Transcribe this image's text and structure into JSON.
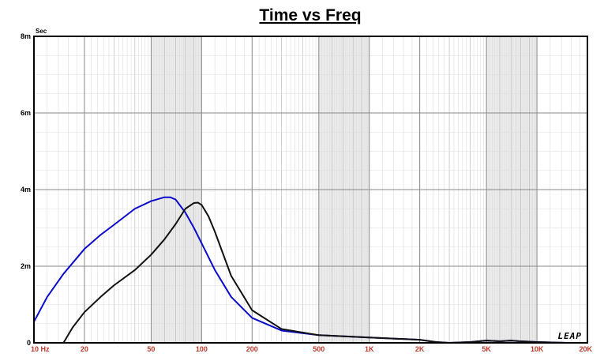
{
  "chart_data": {
    "type": "line",
    "title": "Time vs Freq",
    "y_unit": "Sec",
    "x_scale": "log",
    "xlim": [
      10,
      20000
    ],
    "ylim": [
      0,
      0.008
    ],
    "x_tick_values": [
      10,
      20,
      50,
      100,
      200,
      500,
      1000,
      2000,
      5000,
      10000,
      20000
    ],
    "x_tick_labels": [
      "10  Hz",
      "20",
      "50",
      "100",
      "200",
      "500",
      "1K",
      "2K",
      "5K",
      "10K",
      "20K"
    ],
    "y_tick_values": [
      0,
      0.002,
      0.004,
      0.006,
      0.008
    ],
    "y_tick_labels": [
      "0",
      "2m",
      "4m",
      "6m",
      "8m"
    ],
    "grid": true,
    "shaded_bands": [
      [
        50,
        100
      ],
      [
        500,
        1000
      ],
      [
        5000,
        10000
      ]
    ],
    "logo": "LEAP",
    "series": [
      {
        "color": "#0a0acc",
        "x": [
          10,
          12,
          15,
          20,
          25,
          30,
          40,
          50,
          60,
          65,
          70,
          80,
          90,
          100,
          120,
          150,
          200,
          300,
          500,
          1000,
          2000,
          2500,
          3000,
          4000,
          5000,
          6000,
          7000,
          8000,
          10000,
          15000,
          20000
        ],
        "y": [
          0.00055,
          0.0012,
          0.0018,
          0.00245,
          0.00282,
          0.00308,
          0.0035,
          0.0037,
          0.0038,
          0.0038,
          0.00374,
          0.0034,
          0.003,
          0.0026,
          0.0019,
          0.0012,
          0.00065,
          0.00032,
          0.0002,
          0.00014,
          8e-05,
          2e-05,
          0.0,
          2e-05,
          6e-05,
          4e-05,
          6e-05,
          4e-05,
          2e-05,
          0.0,
          0.0
        ]
      },
      {
        "color": "#111111",
        "x": [
          15,
          17,
          20,
          25,
          30,
          40,
          50,
          60,
          70,
          80,
          90,
          95,
          100,
          110,
          120,
          150,
          200,
          300,
          500,
          1000,
          2000,
          2500,
          3000,
          4000,
          5000,
          6000,
          7000,
          8000,
          10000,
          15000,
          20000
        ],
        "y": [
          0.0,
          0.0004,
          0.0008,
          0.0012,
          0.0015,
          0.0019,
          0.0023,
          0.0027,
          0.0031,
          0.0035,
          0.00365,
          0.00366,
          0.0036,
          0.0033,
          0.0029,
          0.00175,
          0.00085,
          0.00036,
          0.0002,
          0.00014,
          8e-05,
          2e-05,
          0.0,
          2e-05,
          6e-05,
          4e-05,
          6e-05,
          4e-05,
          2e-05,
          0.0,
          0.0
        ]
      }
    ]
  }
}
